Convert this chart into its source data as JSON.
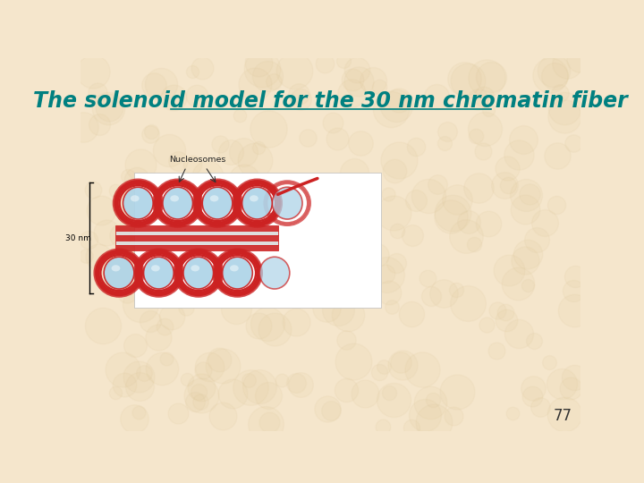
{
  "title": "The solenoid model for the 30 nm chromatin fiber",
  "title_color": "#008080",
  "title_fontsize": 17,
  "page_number": "77",
  "bg_color": "#f5e6cc",
  "nucleosome_label": "Nucleosomes",
  "nm_label": "30 nm",
  "nucleosome_fill": "#aed4e8",
  "nucleosome_edge": "#cc2222",
  "bar_red": "#cc2222",
  "bar_gray": "#dddddd"
}
